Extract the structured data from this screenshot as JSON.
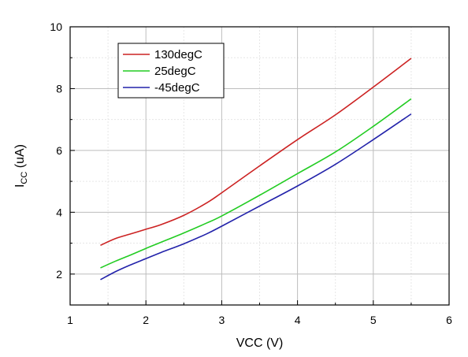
{
  "chart_data": {
    "type": "line",
    "title": "",
    "xlabel": "VCC (V)",
    "ylabel_main": "I",
    "ylabel_sub": "CC",
    "ylabel_unit": " (uA)",
    "xlim": [
      1,
      6
    ],
    "ylim": [
      1,
      10
    ],
    "xticks": [
      1,
      2,
      3,
      4,
      5,
      6
    ],
    "yticks": [
      2,
      4,
      6,
      8,
      10
    ],
    "grid": true,
    "legend_position": "top-left",
    "series": [
      {
        "name": "130degC",
        "color": "#cc2222",
        "x": [
          1.4,
          1.6,
          1.8,
          2.0,
          2.2,
          2.5,
          2.8,
          3.0,
          3.5,
          4.0,
          4.5,
          5.0,
          5.5
        ],
        "y": [
          2.93,
          3.15,
          3.3,
          3.45,
          3.6,
          3.9,
          4.3,
          4.63,
          5.5,
          6.35,
          7.15,
          8.05,
          8.98
        ]
      },
      {
        "name": "25degC",
        "color": "#22cc22",
        "x": [
          1.4,
          1.6,
          1.8,
          2.0,
          2.2,
          2.5,
          2.8,
          3.0,
          3.5,
          4.0,
          4.5,
          5.0,
          5.5
        ],
        "y": [
          2.2,
          2.42,
          2.62,
          2.83,
          3.03,
          3.33,
          3.65,
          3.88,
          4.55,
          5.25,
          5.95,
          6.78,
          7.67
        ]
      },
      {
        "name": "-45degC",
        "color": "#2222aa",
        "x": [
          1.4,
          1.6,
          1.8,
          2.0,
          2.2,
          2.5,
          2.8,
          3.0,
          3.5,
          4.0,
          4.5,
          5.0,
          5.5
        ],
        "y": [
          1.82,
          2.08,
          2.3,
          2.5,
          2.7,
          2.98,
          3.3,
          3.55,
          4.2,
          4.85,
          5.55,
          6.35,
          7.18
        ]
      }
    ]
  }
}
